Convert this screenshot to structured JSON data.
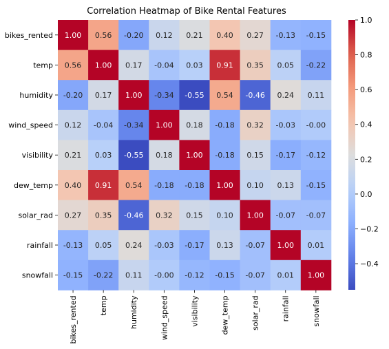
{
  "chart_data": {
    "type": "heatmap",
    "title": "Correlation Heatmap of Bike Rental Features",
    "rows": [
      "bikes_rented",
      "temp",
      "humidity",
      "wind_speed",
      "visibility",
      "dew_temp",
      "solar_rad",
      "rainfall",
      "snowfall"
    ],
    "columns": [
      "bikes_rented",
      "temp",
      "humidity",
      "wind_speed",
      "visibility",
      "dew_temp",
      "solar_rad",
      "rainfall",
      "snowfall"
    ],
    "values": [
      [
        1.0,
        0.56,
        -0.2,
        0.12,
        0.21,
        0.4,
        0.27,
        -0.13,
        -0.15
      ],
      [
        0.56,
        1.0,
        0.17,
        -0.04,
        0.03,
        0.91,
        0.35,
        0.05,
        -0.22
      ],
      [
        -0.2,
        0.17,
        1.0,
        -0.34,
        -0.55,
        0.54,
        -0.46,
        0.24,
        0.11
      ],
      [
        0.12,
        -0.04,
        -0.34,
        1.0,
        0.18,
        -0.18,
        0.32,
        -0.03,
        -0.0
      ],
      [
        0.21,
        0.03,
        -0.55,
        0.18,
        1.0,
        -0.18,
        0.15,
        -0.17,
        -0.12
      ],
      [
        0.4,
        0.91,
        0.54,
        -0.18,
        -0.18,
        1.0,
        0.1,
        0.13,
        -0.15
      ],
      [
        0.27,
        0.35,
        -0.46,
        0.32,
        0.15,
        0.1,
        1.0,
        -0.07,
        -0.07
      ],
      [
        -0.13,
        0.05,
        0.24,
        -0.03,
        -0.17,
        0.13,
        -0.07,
        1.0,
        0.01
      ],
      [
        -0.15,
        -0.22,
        0.11,
        -0.0,
        -0.12,
        -0.15,
        -0.07,
        0.01,
        1.0
      ]
    ],
    "value_format": "0.00",
    "colormap": "coolwarm",
    "colorbar": {
      "range": [
        -0.55,
        1.0
      ],
      "ticks": [
        -0.4,
        -0.2,
        0.0,
        0.2,
        0.4,
        0.6,
        0.8,
        1.0
      ],
      "tick_labels": [
        "−0.4",
        "−0.2",
        "0.0",
        "0.2",
        "0.4",
        "0.6",
        "0.8",
        "1.0"
      ],
      "placement": "right"
    },
    "grid": false
  }
}
